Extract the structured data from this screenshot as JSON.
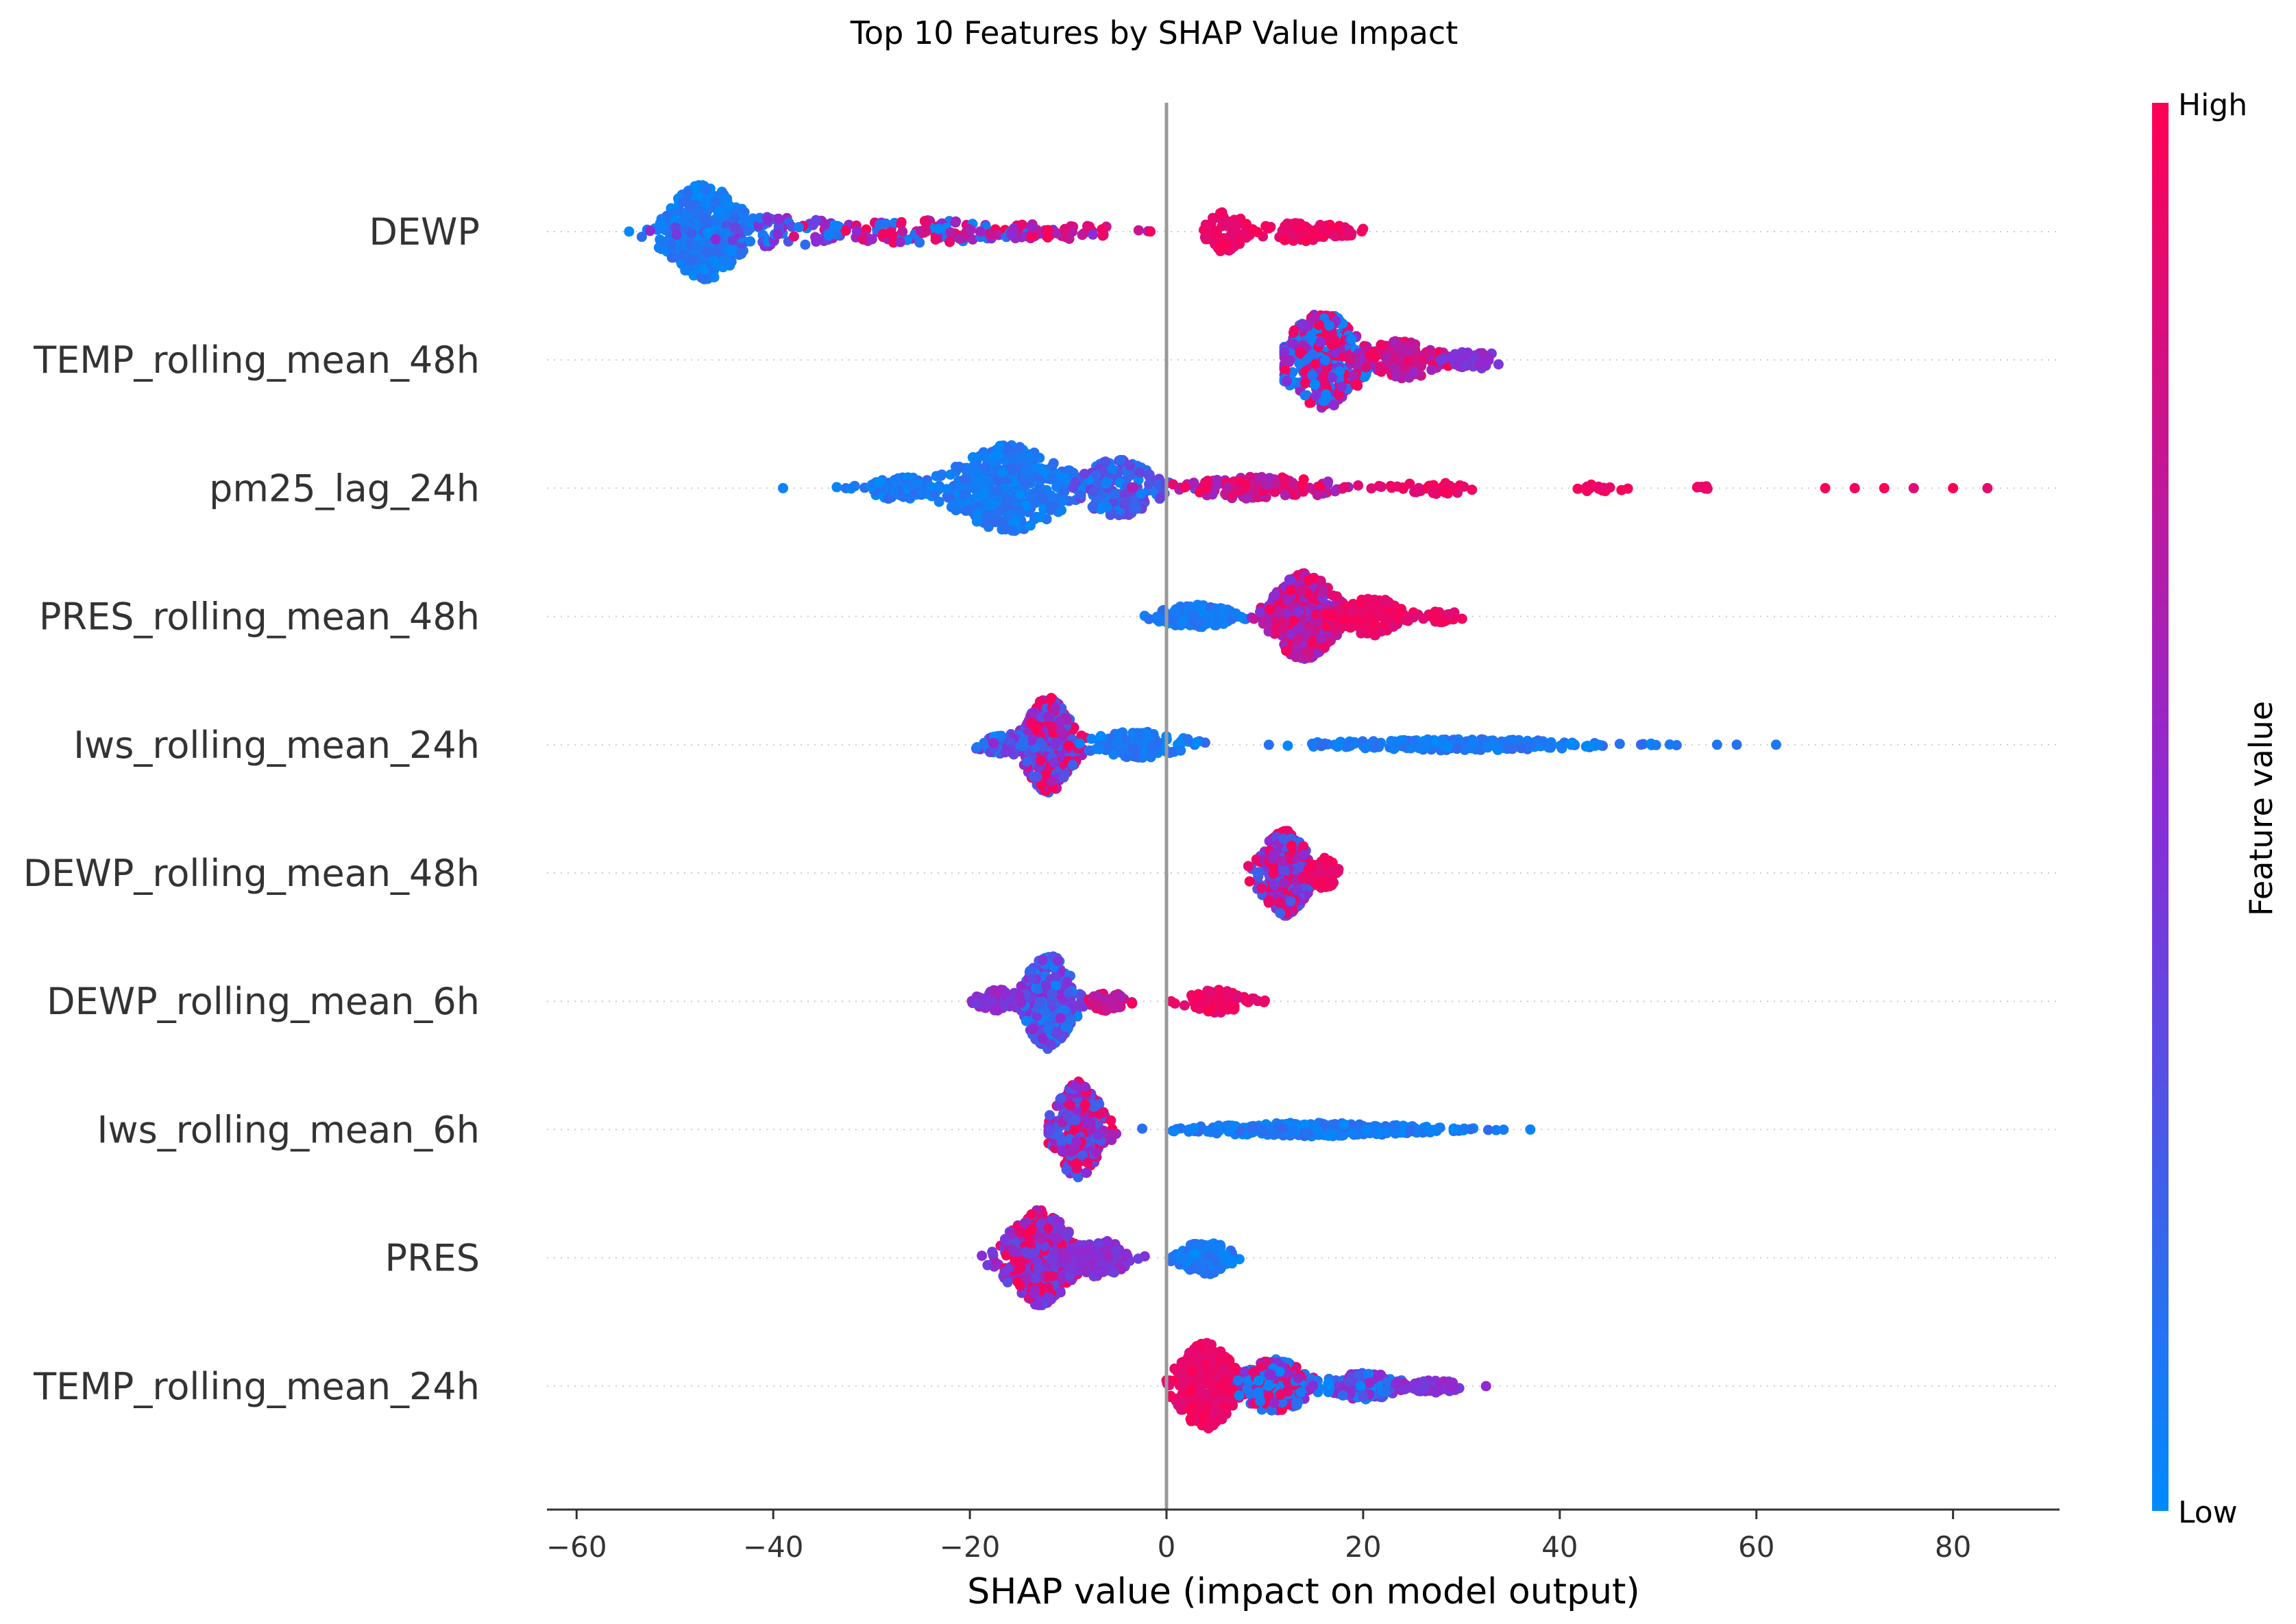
{
  "chart_data": {
    "type": "scatter",
    "subtype": "shap_beeswarm",
    "title": "Top 10 Features by SHAP Value Impact",
    "xlabel": "SHAP value (impact on model output)",
    "xlim": [
      -63,
      91
    ],
    "xticks": [
      -60,
      -40,
      -20,
      0,
      20,
      40,
      60,
      80
    ],
    "xtick_labels": [
      "−60",
      "−40",
      "−20",
      "0",
      "20",
      "40",
      "60",
      "80"
    ],
    "zero_line": true,
    "grid": false,
    "colorbar": {
      "title": "Feature value",
      "high_label": "High",
      "low_label": "Low",
      "high_color": "#ff0052",
      "mid_color": "#8b2bd6",
      "low_color": "#008bfb"
    },
    "features": [
      {
        "name": "DEWP",
        "clusters": [
          {
            "center": -47,
            "spread": 4,
            "count": 420,
            "height": 5,
            "color": "low"
          },
          {
            "center": -40,
            "spread": 8,
            "count": 70,
            "height": 1.6,
            "color": "mixlow"
          },
          {
            "center": -26,
            "spread": 12,
            "count": 110,
            "height": 1.2,
            "color": "mix"
          },
          {
            "center": -12,
            "spread": 8,
            "count": 60,
            "height": 0.8,
            "color": "midhigh"
          },
          {
            "center": 6,
            "spread": 2,
            "count": 60,
            "height": 2.2,
            "color": "high"
          },
          {
            "center": 14,
            "spread": 5,
            "count": 80,
            "height": 1.0,
            "color": "high"
          }
        ],
        "min": -56,
        "max": 20
      },
      {
        "name": "TEMP_rolling_mean_48h",
        "clusters": [
          {
            "center": 16,
            "spread": 4,
            "count": 380,
            "height": 5,
            "color": "mix2"
          },
          {
            "center": 24,
            "spread": 4,
            "count": 110,
            "height": 2.0,
            "color": "highmid"
          },
          {
            "center": 31,
            "spread": 3,
            "count": 50,
            "height": 1.0,
            "color": "mid"
          }
        ],
        "min": 12,
        "max": 37
      },
      {
        "name": "pm25_lag_24h",
        "clusters": [
          {
            "center": -16,
            "spread": 6,
            "count": 420,
            "height": 4.5,
            "color": "low"
          },
          {
            "center": -27,
            "spread": 4,
            "count": 90,
            "height": 1.2,
            "color": "low"
          },
          {
            "center": -5,
            "spread": 4,
            "count": 180,
            "height": 3.0,
            "color": "lowmid"
          },
          {
            "center": 10,
            "spread": 8,
            "count": 150,
            "height": 1.2,
            "color": "highmid"
          },
          {
            "center": 27,
            "spread": 5,
            "count": 40,
            "height": 0.6,
            "color": "high"
          },
          {
            "center": 44,
            "spread": 3,
            "count": 16,
            "height": 0.4,
            "color": "high"
          },
          {
            "center": 55,
            "spread": 2,
            "count": 8,
            "height": 0.2,
            "color": "high"
          }
        ],
        "extras": [
          [
            -39,
            "low"
          ],
          [
            67,
            "high"
          ],
          [
            70,
            "high"
          ],
          [
            73,
            "high"
          ],
          [
            76,
            "high"
          ],
          [
            80,
            "high"
          ],
          [
            83.5,
            "high"
          ]
        ],
        "min": -39,
        "max": 84
      },
      {
        "name": "PRES_rolling_mean_48h",
        "clusters": [
          {
            "center": 3,
            "spread": 4,
            "count": 130,
            "height": 1.2,
            "color": "low"
          },
          {
            "center": 14,
            "spread": 3.5,
            "count": 400,
            "height": 4.5,
            "color": "midhigh"
          },
          {
            "center": 21,
            "spread": 3,
            "count": 130,
            "height": 2.0,
            "color": "high"
          },
          {
            "center": 28,
            "spread": 2,
            "count": 25,
            "height": 0.6,
            "color": "high"
          }
        ],
        "min": -3,
        "max": 31
      },
      {
        "name": "Iws_rolling_mean_24h",
        "clusters": [
          {
            "center": -12,
            "spread": 2.5,
            "count": 380,
            "height": 5,
            "color": "mixhigh"
          },
          {
            "center": -16,
            "spread": 3,
            "count": 60,
            "height": 1.2,
            "color": "lowmix"
          },
          {
            "center": -3,
            "spread": 5,
            "count": 130,
            "height": 1.4,
            "color": "low"
          },
          {
            "center": 30,
            "spread": 14,
            "count": 260,
            "height": 0.6,
            "color": "low"
          }
        ],
        "extras": [
          [
            56,
            "low"
          ],
          [
            58,
            "low"
          ],
          [
            62,
            "low"
          ]
        ],
        "min": -21,
        "max": 62
      },
      {
        "name": "DEWP_rolling_mean_48h",
        "clusters": [
          {
            "center": 12,
            "spread": 2.5,
            "count": 300,
            "height": 4.5,
            "color": "mixhigh"
          },
          {
            "center": 16,
            "spread": 1.5,
            "count": 60,
            "height": 1.6,
            "color": "high"
          }
        ],
        "min": 8,
        "max": 17.5
      },
      {
        "name": "DEWP_rolling_mean_6h",
        "clusters": [
          {
            "center": -12,
            "spread": 2.5,
            "count": 330,
            "height": 5,
            "color": "lowmix"
          },
          {
            "center": -17,
            "spread": 2.5,
            "count": 80,
            "height": 1.2,
            "color": "mid"
          },
          {
            "center": -6,
            "spread": 2,
            "count": 70,
            "height": 1.0,
            "color": "highmid"
          },
          {
            "center": 5,
            "spread": 3,
            "count": 110,
            "height": 1.2,
            "color": "high"
          }
        ],
        "min": -20.5,
        "max": 10
      },
      {
        "name": "Iws_rolling_mean_6h",
        "clusters": [
          {
            "center": -9,
            "spread": 2.5,
            "count": 300,
            "height": 5,
            "color": "mixhigh"
          },
          {
            "center": 15,
            "spread": 12,
            "count": 320,
            "height": 0.7,
            "color": "low"
          }
        ],
        "extras": [
          [
            37,
            "low"
          ]
        ],
        "min": -12,
        "max": 37
      },
      {
        "name": "PRES",
        "clusters": [
          {
            "center": -13,
            "spread": 3.5,
            "count": 420,
            "height": 5,
            "color": "highmix"
          },
          {
            "center": -7,
            "spread": 3,
            "count": 120,
            "height": 2.0,
            "color": "mid"
          },
          {
            "center": 4,
            "spread": 2.5,
            "count": 150,
            "height": 1.8,
            "color": "low"
          }
        ],
        "min": -21,
        "max": 8
      },
      {
        "name": "TEMP_rolling_mean_24h",
        "clusters": [
          {
            "center": 4,
            "spread": 3,
            "count": 360,
            "height": 4.5,
            "color": "high"
          },
          {
            "center": 11,
            "spread": 3.5,
            "count": 220,
            "height": 2.8,
            "color": "mix"
          },
          {
            "center": 20,
            "spread": 4,
            "count": 140,
            "height": 1.4,
            "color": "mixlow"
          },
          {
            "center": 27,
            "spread": 3,
            "count": 50,
            "height": 0.7,
            "color": "mid"
          }
        ],
        "min": 0,
        "max": 32.5
      }
    ]
  }
}
